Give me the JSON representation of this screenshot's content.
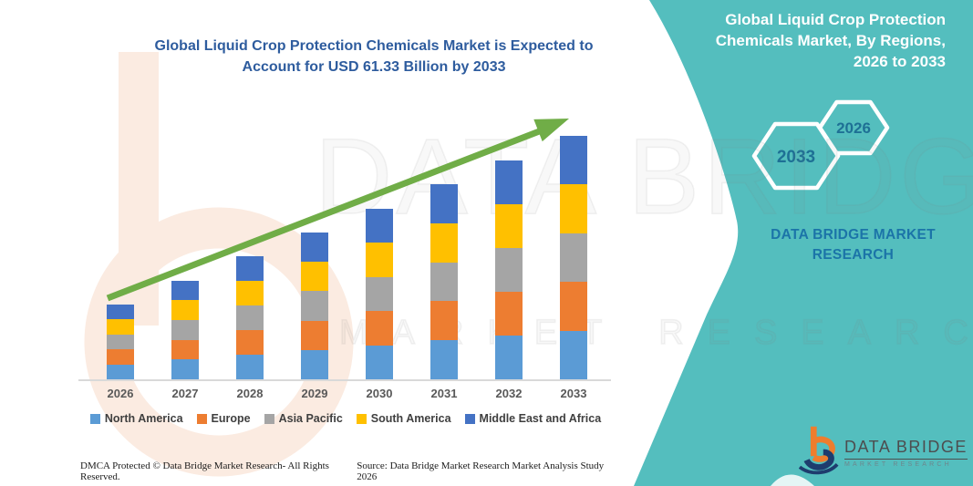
{
  "header": {
    "title_line1": "Global Liquid Crop Protection Chemicals Market is Expected to",
    "title_line2": "Account for USD 61.33 Billion by 2033"
  },
  "right_panel": {
    "title_line1": "Global Liquid Crop Protection",
    "title_line2": "Chemicals Market, By Regions,",
    "title_line3": "2026 to 2033",
    "hexagons": [
      {
        "label": "2033"
      },
      {
        "label": "2026"
      }
    ],
    "brand_line1": "DATA BRIDGE MARKET",
    "brand_line2": "RESEARCH"
  },
  "watermark": {
    "big": "DATA BRIDGE",
    "sub": "MARKET RESEARCH"
  },
  "footer": {
    "dmca": "DMCA Protected © Data Bridge Market Research-  All Rights Reserved.",
    "source": "Source: Data Bridge Market Research  Market Analysis Study 2026"
  },
  "logo": {
    "name": "DATA BRIDGE",
    "sub": "MARKET RESEARCH"
  },
  "colors": {
    "teal": "#54BEBE",
    "title_blue": "#2E5C9E",
    "arrow_green": "#70AD47",
    "axis_gray": "#D9D9D9",
    "hex_label": "#1E7095",
    "dbmr_blue": "#1B74A8",
    "watermark_peach": "#FBEBE1",
    "logo_orange": "#EE7D2D",
    "logo_navy": "#1E3C6E"
  },
  "chart_data": {
    "type": "bar",
    "stacked": true,
    "title": "Global Liquid Crop Protection Chemicals Market, USD Billion, 2026 to 2033",
    "categories": [
      "2026",
      "2027",
      "2028",
      "2029",
      "2030",
      "2031",
      "2032",
      "2033"
    ],
    "series": [
      {
        "name": "North America",
        "color": "#5B9BD5",
        "values": [
          3.78,
          4.99,
          6.2,
          7.41,
          8.63,
          9.84,
          11.05,
          12.27
        ]
      },
      {
        "name": "Europe",
        "color": "#ED7D31",
        "values": [
          3.78,
          4.99,
          6.2,
          7.41,
          8.63,
          9.84,
          11.05,
          12.27
        ]
      },
      {
        "name": "Asia Pacific",
        "color": "#A5A5A5",
        "values": [
          3.78,
          4.99,
          6.2,
          7.41,
          8.63,
          9.84,
          11.05,
          12.27
        ]
      },
      {
        "name": "South America",
        "color": "#FFC000",
        "values": [
          3.78,
          4.99,
          6.2,
          7.41,
          8.63,
          9.84,
          11.05,
          12.27
        ]
      },
      {
        "name": "Middle East and Africa",
        "color": "#4472C4",
        "values": [
          3.78,
          4.99,
          6.2,
          7.41,
          8.62,
          9.84,
          11.05,
          12.25
        ]
      }
    ],
    "totals": [
      18.9,
      24.95,
      31.0,
      37.05,
      43.14,
      49.2,
      55.25,
      61.33
    ],
    "final_value_label": "USD 61.33 Billion by 2033",
    "xlabel": "",
    "ylabel": "",
    "ylim": [
      0,
      65
    ],
    "grid": false,
    "legend_position": "bottom",
    "annotation": "growth-trend-arrow"
  }
}
